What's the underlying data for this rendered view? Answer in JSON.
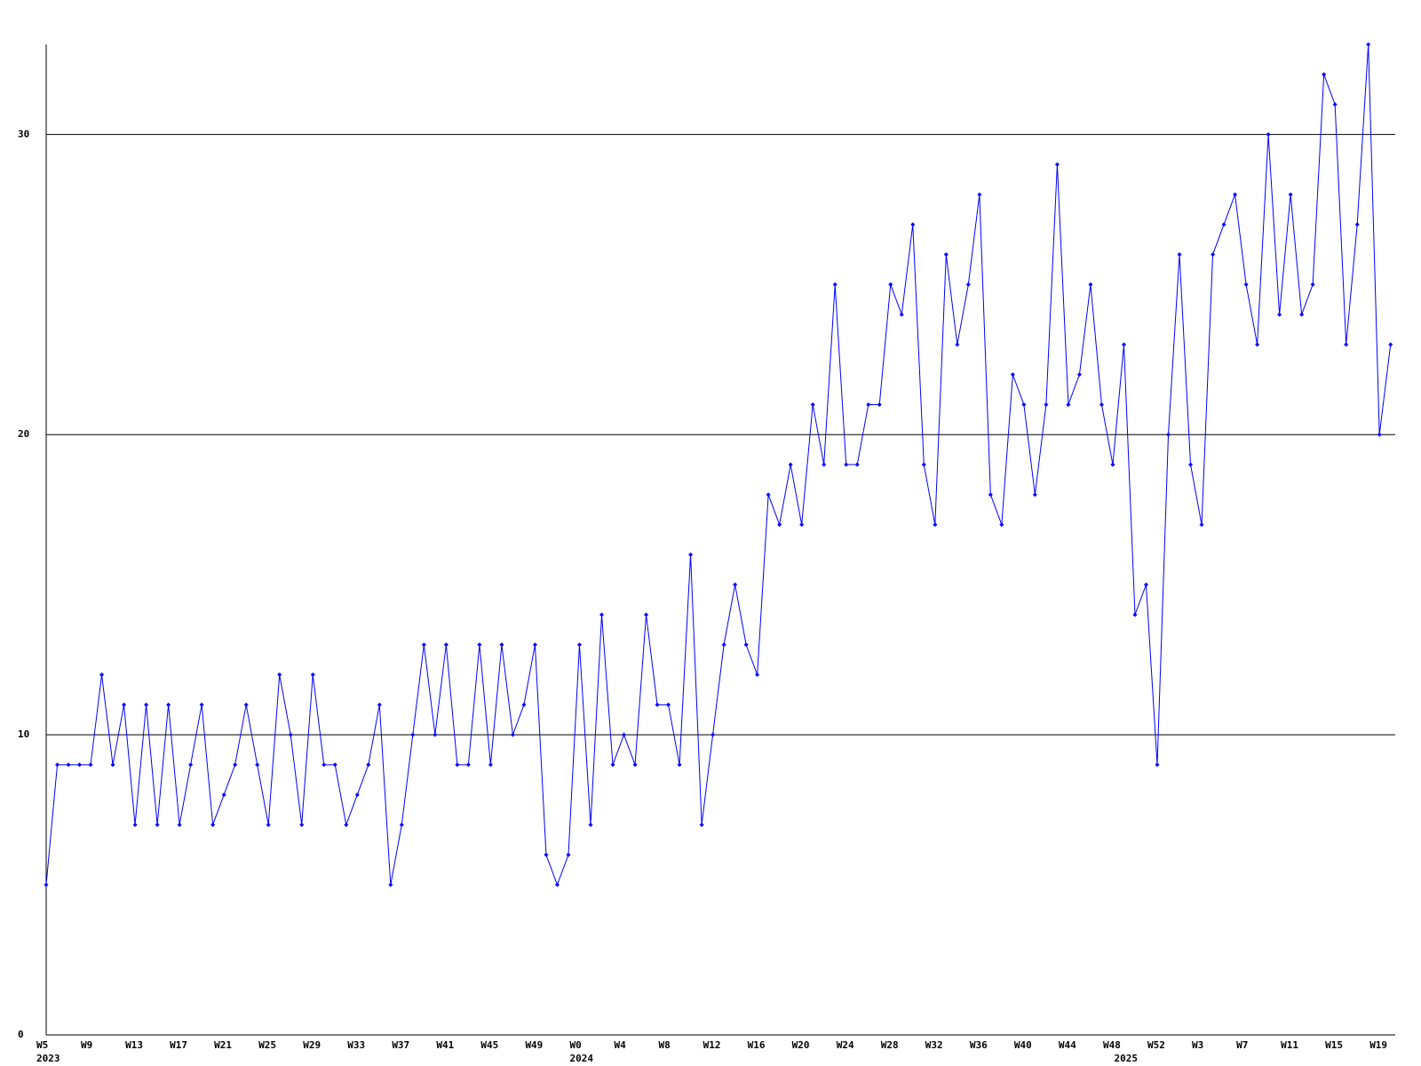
{
  "chart_data": {
    "type": "line",
    "categories": [
      "W5",
      null,
      null,
      null,
      "W9",
      null,
      null,
      null,
      "W13",
      null,
      null,
      null,
      "W17",
      null,
      null,
      null,
      "W21",
      null,
      null,
      null,
      "W25",
      null,
      null,
      null,
      "W29",
      null,
      null,
      null,
      "W33",
      null,
      null,
      null,
      "W37",
      null,
      null,
      null,
      "W41",
      null,
      null,
      null,
      "W45",
      null,
      null,
      null,
      "W49",
      null,
      null,
      null,
      "W0",
      null,
      null,
      null,
      "W4",
      null,
      null,
      null,
      "W8",
      null,
      null,
      null,
      "W12",
      null,
      null,
      null,
      "W16",
      null,
      null,
      null,
      "W20",
      null,
      null,
      null,
      "W24",
      null,
      null,
      null,
      "W28",
      null,
      null,
      null,
      "W32",
      null,
      null,
      null,
      "W36",
      null,
      null,
      null,
      "W40",
      null,
      null,
      null,
      "W44",
      null,
      null,
      null,
      "W48",
      null,
      null,
      null,
      "W52",
      null,
      null,
      null,
      "W3",
      null,
      null,
      null,
      "W7",
      null,
      null,
      null,
      "W11",
      null,
      null,
      null,
      "W15",
      null,
      null,
      null,
      "W19",
      null
    ],
    "years": [
      "2023",
      null,
      null,
      null,
      null,
      null,
      null,
      null,
      null,
      null,
      null,
      null,
      null,
      null,
      null,
      null,
      null,
      null,
      null,
      null,
      null,
      null,
      null,
      null,
      null,
      null,
      null,
      null,
      null,
      null,
      null,
      null,
      null,
      null,
      null,
      null,
      null,
      null,
      null,
      null,
      null,
      null,
      null,
      null,
      null,
      null,
      null,
      null,
      "2024",
      null,
      null,
      null,
      null,
      null,
      null,
      null,
      null,
      null,
      null,
      null,
      null,
      null,
      null,
      null,
      null,
      null,
      null,
      null,
      null,
      null,
      null,
      null,
      null,
      null,
      null,
      null,
      null,
      null,
      null,
      null,
      null,
      null,
      null,
      null,
      null,
      null,
      null,
      null,
      null,
      null,
      null,
      null,
      null,
      null,
      null,
      null,
      null,
      "2025",
      null,
      null,
      null,
      null,
      null,
      null,
      null,
      null,
      null,
      null,
      null,
      null,
      null,
      null,
      null,
      null,
      null,
      null,
      null,
      null,
      null,
      null,
      null,
      null
    ],
    "series": [
      {
        "color": "#0000ff",
        "values": [
          5,
          9,
          9,
          9,
          9,
          12,
          9,
          11,
          7,
          11,
          7,
          11,
          7,
          9,
          11,
          7,
          8,
          9,
          11,
          9,
          7,
          12,
          10,
          7,
          12,
          9,
          9,
          7,
          8,
          9,
          11,
          5,
          7,
          10,
          13,
          10,
          13,
          9,
          9,
          13,
          9,
          13,
          10,
          11,
          13,
          6,
          5,
          6,
          13,
          7,
          14,
          9,
          10,
          9,
          14,
          11,
          11,
          9,
          16,
          7,
          10,
          13,
          15,
          13,
          12,
          18,
          17,
          19,
          17,
          21,
          19,
          25,
          19,
          19,
          21,
          21,
          25,
          24,
          27,
          19,
          17,
          26,
          23,
          25,
          28,
          18,
          17,
          22,
          21,
          18,
          21,
          29,
          21,
          22,
          25,
          21,
          19,
          23,
          14,
          15,
          9,
          20,
          26,
          19,
          17,
          26,
          27,
          28,
          25,
          23,
          30,
          24,
          28,
          24,
          25,
          32,
          31,
          23,
          27,
          33,
          20,
          23
        ]
      }
    ],
    "ylim": [
      0,
      33
    ],
    "yticks": [
      0,
      10,
      20,
      30
    ],
    "grid": true
  }
}
